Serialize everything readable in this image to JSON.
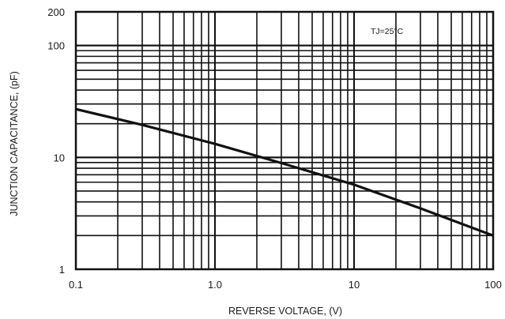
{
  "chart_data": {
    "type": "line",
    "title": "",
    "xlabel": "REVERSE VOLTAGE, (V)",
    "ylabel": "JUNCTION CAPACITANCE, (pF)",
    "xscale": "log",
    "yscale": "log",
    "xlim": [
      0.1,
      100
    ],
    "ylim": [
      1,
      200
    ],
    "x_ticks": [
      0.1,
      1,
      10,
      100
    ],
    "x_tick_labels": [
      "0.1",
      "1.0",
      "10",
      "100"
    ],
    "y_ticks": [
      1,
      10,
      100,
      200
    ],
    "y_tick_labels": [
      "1",
      "10",
      "100",
      "200"
    ],
    "grid": true,
    "annotation": {
      "text": "TJ=25°C"
    },
    "series": [
      {
        "x": [
          0.1,
          0.3,
          1,
          3,
          10,
          30,
          100
        ],
        "y": [
          27,
          19.5,
          13.2,
          8.9,
          5.7,
          3.5,
          2.0
        ]
      }
    ]
  }
}
